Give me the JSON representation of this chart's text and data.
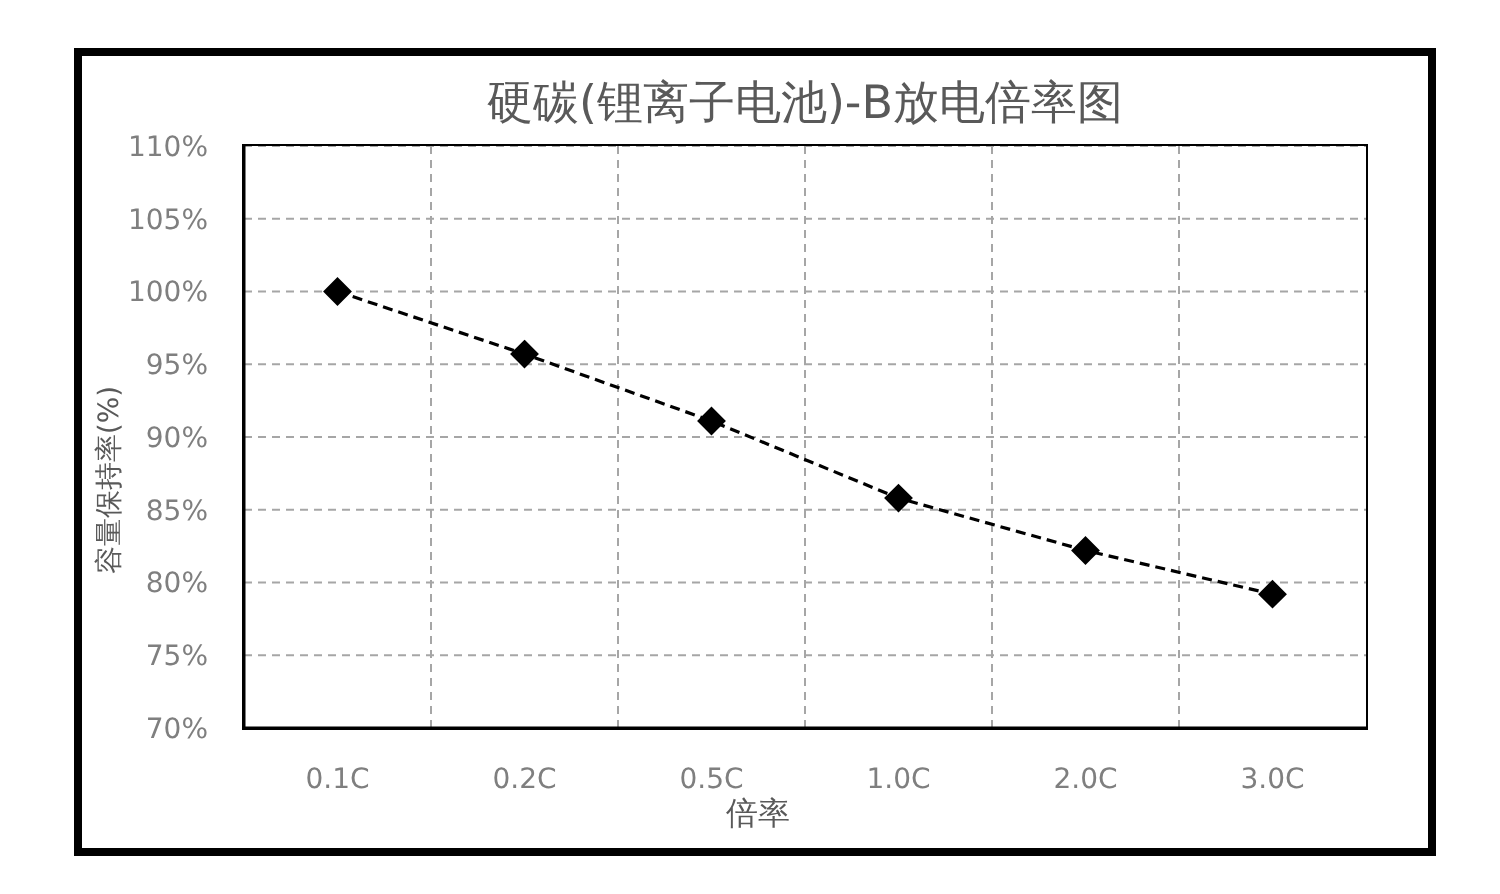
{
  "chart_data": {
    "type": "line",
    "title": "硬碳(锂离子电池)-B放电倍率图",
    "xlabel": "倍率",
    "ylabel": "容量保持率(%)",
    "categories": [
      "0.1C",
      "0.2C",
      "0.5C",
      "1.0C",
      "2.0C",
      "3.0C"
    ],
    "series": [
      {
        "color": "#000000",
        "values": [
          100,
          95.7,
          91.1,
          85.8,
          82.2,
          79.2
        ]
      }
    ],
    "ylim": [
      70,
      110
    ],
    "yticks": [
      {
        "value": 70,
        "label": "70%"
      },
      {
        "value": 75,
        "label": "75%"
      },
      {
        "value": 80,
        "label": "80%"
      },
      {
        "value": 85,
        "label": "85%"
      },
      {
        "value": 90,
        "label": "90%"
      },
      {
        "value": 95,
        "label": "95%"
      },
      {
        "value": 100,
        "label": "100%"
      },
      {
        "value": 105,
        "label": "105%"
      },
      {
        "value": 110,
        "label": "110%"
      }
    ],
    "grid": true,
    "marker": "diamond",
    "line_style": "dashed"
  }
}
